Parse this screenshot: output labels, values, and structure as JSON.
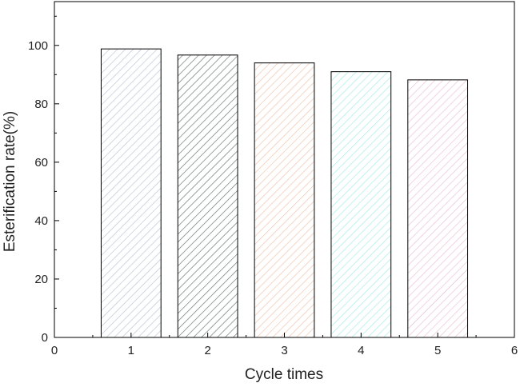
{
  "chart_data": {
    "type": "bar",
    "title": "",
    "xlabel": "Cycle times",
    "ylabel": "Esterification rate(%)",
    "categories": [
      "1",
      "2",
      "3",
      "4",
      "5"
    ],
    "x": [
      1,
      2,
      3,
      4,
      5
    ],
    "values": [
      98.8,
      96.7,
      94.0,
      91.0,
      88.2
    ],
    "xlim": [
      0,
      6
    ],
    "ylim": [
      0,
      115
    ],
    "xticks": [
      "0",
      "1",
      "2",
      "3",
      "4",
      "5",
      "6"
    ],
    "yticks": [
      "0",
      "20",
      "40",
      "60",
      "80",
      "100"
    ],
    "grid": false,
    "legend": "none",
    "bar_colors": [
      "#bcc6d6",
      "#6e7a7a",
      "#f0c4ac",
      "#a6ece8",
      "#ecc0d6"
    ]
  }
}
